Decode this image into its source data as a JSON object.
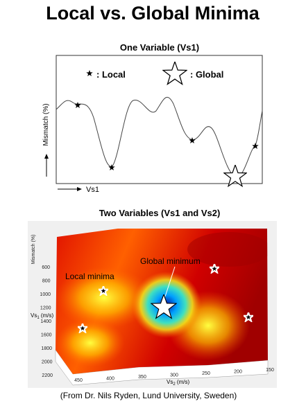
{
  "title": "Local vs. Global Minima",
  "panel1": {
    "title": "One Variable (Vs1)",
    "legend_local": ": Local",
    "legend_global": ": Global",
    "y_label": "Mismatch (%)",
    "x_label": "Vs1"
  },
  "panel2": {
    "title": "Two Variables (Vs1 and Vs2)",
    "z_label": "Mismatch (%)",
    "local_label": "Local minima",
    "global_label": "Global minimum",
    "vs1_ticks": [
      "600",
      "800",
      "1000",
      "1200",
      "1400",
      "1600",
      "1800",
      "2000",
      "2200"
    ],
    "vs1_label": [
      "Vs",
      "1",
      " (m/s)"
    ],
    "vs2_ticks": [
      "450",
      "400",
      "350",
      "300",
      "250",
      "200",
      "150"
    ],
    "vs2_label": [
      "Vs",
      "2",
      " (m/s)"
    ]
  },
  "caption": "(From Dr. Nils Ryden, Lund University, Sweden)"
}
